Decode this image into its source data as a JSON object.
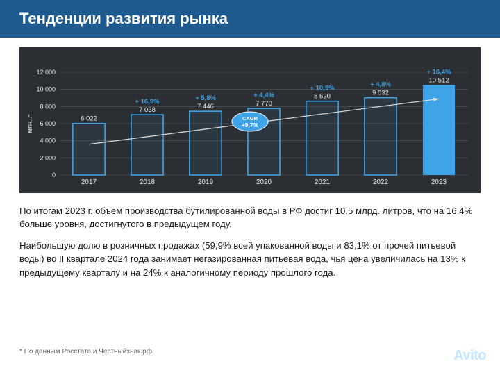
{
  "header": {
    "title": "Тенденции развития рынка"
  },
  "chart": {
    "type": "bar",
    "background_color": "#2b2f33",
    "grid_color": "#555a60",
    "axis_text_color": "#e6e8ea",
    "label_font_size": 9,
    "yaxis_label": "млн. л",
    "ylim": [
      0,
      12000
    ],
    "ytick_step": 2000,
    "yticks": [
      "0",
      "2 000",
      "4 000",
      "6 000",
      "8 000",
      "10 000",
      "12 000"
    ],
    "categories": [
      "2017",
      "2018",
      "2019",
      "2020",
      "2021",
      "2022",
      "2023"
    ],
    "values": [
      6022,
      7038,
      7446,
      7770,
      8620,
      9032,
      10512
    ],
    "value_labels": [
      "6 022",
      "7 038",
      "7 446",
      "7 770",
      "8 620",
      "9 032",
      "10 512"
    ],
    "growth_labels": [
      "",
      "+ 16,9%",
      "+ 5,8%",
      "+ 4,4%",
      "+ 10,9%",
      "+ 4,8%",
      "+ 16,4%"
    ],
    "growth_color": "#3fa3e8",
    "bar_outline_color": "#3fa3e8",
    "bar_fill_outline": "rgba(63,163,232,0.08)",
    "bar_fill_solid": "#3fa3e8",
    "highlight_index": 6,
    "bar_width_ratio": 0.55,
    "cagr_badge": {
      "label": "CAGR",
      "value": "+9,7%",
      "fill": "#3fa3e8",
      "text": "#ffffff"
    },
    "trend_line_color": "#e0e0e0"
  },
  "paragraphs": [
    "По итогам 2023 г. объем производства бутилированной воды в РФ достиг 10,5 млрд. литров, что на 16,4% больше уровня, достигнутого в предыдущем году.",
    "Наибольшую долю в розничных продажах (59,9% всей упакованной воды и 83,1% от прочей питьевой воды) во II квартале 2024 года занимает негазированная питьевая вода, чья цена увеличилась на 13% к предыдущему кварталу и на 24% к аналогичному периоду прошлого года."
  ],
  "footnote": "* По данным Росстата и Честныйзнак.рф",
  "watermark": "Avito"
}
